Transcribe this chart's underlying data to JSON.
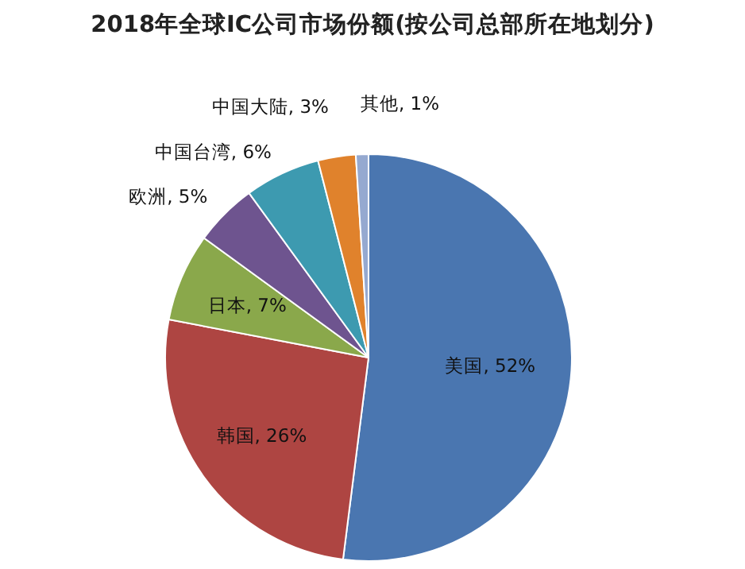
{
  "chart_data": {
    "type": "pie",
    "title": "2018年全球IC公司市场份额(按公司总部所在地划分)",
    "categories": [
      "美国",
      "韩国",
      "日本",
      "欧洲",
      "中国台湾",
      "中国大陆",
      "其他"
    ],
    "values": [
      52,
      26,
      7,
      5,
      6,
      3,
      1
    ],
    "colors": [
      "#4a76b0",
      "#ae4542",
      "#8aa84b",
      "#6e548f",
      "#3d9ab0",
      "#e0822c",
      "#95a9d0"
    ],
    "value_labels": [
      "52%",
      "26%",
      "7%",
      "5%",
      "6%",
      "3%",
      "1%"
    ]
  }
}
